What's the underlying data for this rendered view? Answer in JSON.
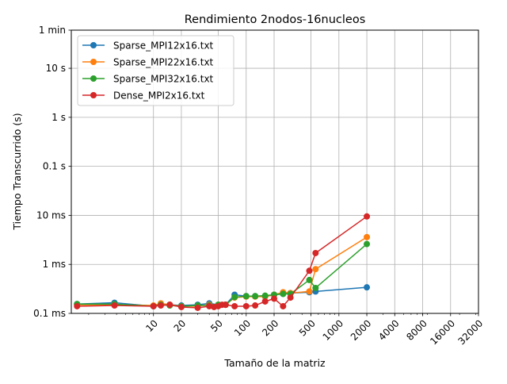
{
  "chart_data": {
    "type": "line",
    "title": "Rendimiento 2nodos-16nucleos",
    "xlabel": "Tamaño de la matriz",
    "ylabel": "Tiempo Transcurrido (s)",
    "x_scale": "log",
    "y_scale": "log",
    "xlim": [
      1.3,
      32000
    ],
    "ylim": [
      0.0001,
      60
    ],
    "grid": true,
    "legend_position": "top-left",
    "x_ticks": [
      {
        "value": 10,
        "label": "10"
      },
      {
        "value": 20,
        "label": "20"
      },
      {
        "value": 50,
        "label": "50"
      },
      {
        "value": 100,
        "label": "100"
      },
      {
        "value": 200,
        "label": "200"
      },
      {
        "value": 500,
        "label": "500"
      },
      {
        "value": 1000,
        "label": "1000"
      },
      {
        "value": 2000,
        "label": "2000"
      },
      {
        "value": 4000,
        "label": "4000"
      },
      {
        "value": 8000,
        "label": "8000"
      },
      {
        "value": 16000,
        "label": "16000"
      },
      {
        "value": 32000,
        "label": "32000"
      }
    ],
    "y_ticks": [
      {
        "value": 0.0001,
        "label": "0.1 ms"
      },
      {
        "value": 0.001,
        "label": "1 ms"
      },
      {
        "value": 0.01,
        "label": "10 ms"
      },
      {
        "value": 0.1,
        "label": "0.1 s"
      },
      {
        "value": 1,
        "label": "1 s"
      },
      {
        "value": 10,
        "label": "10 s"
      },
      {
        "value": 60,
        "label": "1 min"
      }
    ],
    "series": [
      {
        "name": "Sparse_MPI12x16.txt",
        "color": "#1f77b4",
        "x": [
          1.5,
          3.8,
          10,
          12,
          15,
          20,
          30,
          40,
          50,
          60,
          75,
          100,
          125,
          160,
          200,
          250,
          300,
          480,
          560,
          2000
        ],
        "y": [
          0.000155,
          0.000165,
          0.00014,
          0.00015,
          0.00015,
          0.000145,
          0.00015,
          0.00016,
          0.00015,
          0.00015,
          0.00024,
          0.000225,
          0.000225,
          0.00022,
          0.00024,
          0.00025,
          0.00026,
          0.00027,
          0.00028,
          0.00034
        ]
      },
      {
        "name": "Sparse_MPI22x16.txt",
        "color": "#ff7f0e",
        "x": [
          1.5,
          3.8,
          10,
          12,
          15,
          20,
          30,
          40,
          50,
          60,
          75,
          100,
          125,
          160,
          200,
          250,
          300,
          480,
          560,
          2000
        ],
        "y": [
          0.00015,
          0.00015,
          0.000145,
          0.00016,
          0.00015,
          0.00014,
          0.00014,
          0.00015,
          0.00015,
          0.00015,
          0.00021,
          0.00022,
          0.00022,
          0.00022,
          0.00024,
          0.00027,
          0.00026,
          0.00028,
          0.0008,
          0.0036
        ]
      },
      {
        "name": "Sparse_MPI32x16.txt",
        "color": "#2ca02c",
        "x": [
          1.5,
          3.8,
          10,
          12,
          15,
          20,
          30,
          40,
          50,
          60,
          75,
          100,
          125,
          160,
          200,
          250,
          300,
          480,
          560,
          2000
        ],
        "y": [
          0.000155,
          0.000155,
          0.00014,
          0.00015,
          0.000145,
          0.00014,
          0.000145,
          0.000145,
          0.00015,
          0.00015,
          0.000215,
          0.000225,
          0.000225,
          0.00023,
          0.00024,
          0.00025,
          0.00025,
          0.00048,
          0.00033,
          0.0026
        ]
      },
      {
        "name": "Dense_MPI2x16.txt",
        "color": "#d62728",
        "x": [
          1.5,
          3.8,
          10,
          12,
          15,
          20,
          30,
          40,
          45,
          50,
          55,
          60,
          75,
          100,
          125,
          160,
          200,
          250,
          300,
          480,
          560,
          2000
        ],
        "y": [
          0.00014,
          0.000145,
          0.00014,
          0.000145,
          0.00015,
          0.000135,
          0.00013,
          0.00014,
          0.000135,
          0.00014,
          0.00015,
          0.00015,
          0.00014,
          0.00014,
          0.000145,
          0.000175,
          0.0002,
          0.00014,
          0.00021,
          0.00074,
          0.0017,
          0.0095
        ]
      }
    ]
  }
}
